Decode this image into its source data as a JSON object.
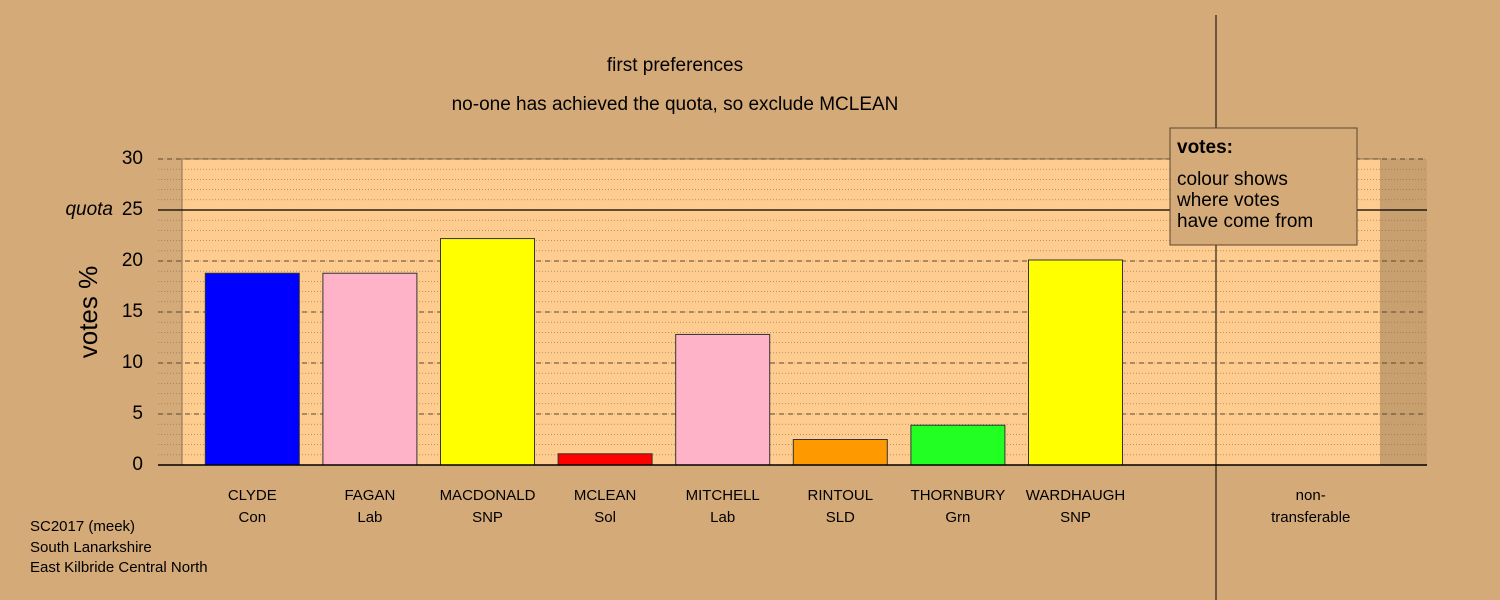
{
  "chart_data": {
    "type": "bar",
    "title": "first preferences",
    "subtitle": "no-one has achieved the quota, so exclude MCLEAN",
    "y_label": "votes %",
    "categories": [
      "CLYDE",
      "FAGAN",
      "MACDONALD",
      "MCLEAN",
      "MITCHELL",
      "RINTOUL",
      "THORNBURY",
      "WARDHAUGH",
      null,
      "non-"
    ],
    "sublabels": [
      "Con",
      "Lab",
      "SNP",
      "Sol",
      "Lab",
      "SLD",
      "Grn",
      "SNP",
      null,
      "transferable"
    ],
    "values": [
      18.8,
      18.8,
      22.2,
      1.1,
      12.8,
      2.5,
      3.9,
      20.1,
      null,
      0
    ],
    "colors": [
      "#0000ff",
      "#ffb3c8",
      "#ffff00",
      "#ff0000",
      "#ffb3c8",
      "#ff9900",
      "#22ff22",
      "#ffff00",
      null,
      "#ffcc8f"
    ],
    "ylim": [
      0,
      30
    ],
    "yticks": [
      0,
      5,
      10,
      15,
      20,
      25,
      30
    ],
    "grid": true,
    "minor_grid_step": 1,
    "quota": 25,
    "quota_label": "quota",
    "legend": {
      "title": "votes:",
      "lines": [
        "colour shows",
        "where votes",
        "have come from"
      ]
    },
    "footer": [
      "SC2017 (meek)",
      "South Lanarkshire",
      "East Kilbride Central North"
    ]
  }
}
